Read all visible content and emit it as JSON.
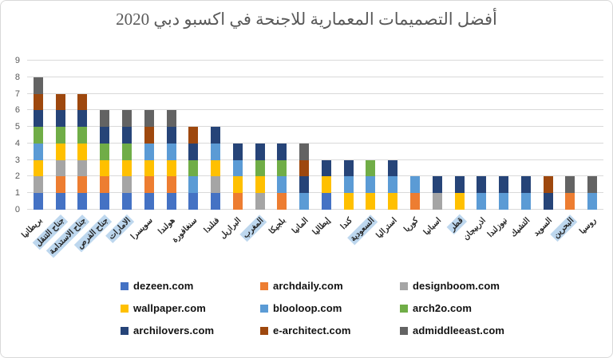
{
  "chart_data": {
    "type": "bar",
    "stacked": true,
    "title": "أفضل التصميمات المعمارية للاجنحة في اكسبو دبي 2020",
    "xlabel": "",
    "ylabel": "",
    "ylim": [
      0,
      9
    ],
    "yticks": [
      0,
      1,
      2,
      3,
      4,
      5,
      6,
      7,
      8,
      9
    ],
    "grid": true,
    "legend_position": "bottom",
    "highlight_color": "#BDD7EE",
    "gridline_color": "#D9D9D9",
    "categories": [
      "بريطانيا",
      "جناح التنقل",
      "جناح الاستدامة",
      "جناح الفرص",
      "الامارات",
      "سويسرا",
      "هولندا",
      "سنغافورة",
      "فنلندا",
      "البرازيل",
      "المغرب",
      "بلجيكا",
      "المانيا",
      "إيطاليا",
      "كندا",
      "السعودية",
      "استراليا",
      "كوريا",
      "اسبانيا",
      "قطر",
      "اذربيجان",
      "نيوزلندا",
      "التشيك",
      "السويد",
      "البحرين",
      "روسيا"
    ],
    "highlighted_categories": [
      "جناح التنقل",
      "جناح الاستدامة",
      "جناح الفرص",
      "الامارات",
      "المغرب",
      "السعودية",
      "قطر",
      "البحرين"
    ],
    "totals": [
      8,
      7,
      7,
      6,
      6,
      6,
      6,
      5,
      5,
      4,
      4,
      4,
      4,
      3,
      3,
      3,
      3,
      2,
      2,
      2,
      2,
      2,
      2,
      2,
      2,
      2
    ],
    "series": [
      {
        "name": "dezeen.com",
        "color": "#4472C4",
        "values": [
          1,
          1,
          1,
          1,
          1,
          1,
          1,
          1,
          1,
          0,
          0,
          0,
          0,
          1,
          0,
          0,
          0,
          0,
          0,
          0,
          0,
          0,
          0,
          0,
          0,
          0
        ]
      },
      {
        "name": "archdaily.com",
        "color": "#ED7D31",
        "values": [
          0,
          1,
          1,
          1,
          0,
          1,
          1,
          0,
          0,
          1,
          0,
          1,
          0,
          0,
          0,
          0,
          0,
          1,
          0,
          0,
          0,
          0,
          0,
          0,
          1,
          0
        ]
      },
      {
        "name": "designboom.com",
        "color": "#A5A5A5",
        "values": [
          1,
          1,
          1,
          0,
          1,
          0,
          0,
          0,
          1,
          0,
          1,
          0,
          0,
          0,
          0,
          0,
          0,
          0,
          1,
          0,
          0,
          0,
          0,
          0,
          0,
          0
        ]
      },
      {
        "name": "wallpaper.com",
        "color": "#FFC000",
        "values": [
          1,
          1,
          1,
          1,
          1,
          1,
          1,
          0,
          1,
          1,
          1,
          0,
          0,
          1,
          1,
          1,
          1,
          0,
          0,
          1,
          0,
          0,
          0,
          0,
          0,
          0
        ]
      },
      {
        "name": "blooloop.com",
        "color": "#5B9BD5",
        "values": [
          1,
          0,
          0,
          0,
          0,
          1,
          1,
          1,
          1,
          1,
          0,
          1,
          1,
          0,
          1,
          1,
          1,
          1,
          0,
          0,
          1,
          1,
          1,
          0,
          0,
          1
        ]
      },
      {
        "name": "arch2o.com",
        "color": "#70AD47",
        "values": [
          1,
          1,
          1,
          1,
          1,
          0,
          0,
          1,
          0,
          0,
          1,
          1,
          0,
          0,
          0,
          1,
          0,
          0,
          0,
          0,
          0,
          0,
          0,
          0,
          0,
          0
        ]
      },
      {
        "name": "archilovers.com",
        "color": "#264478",
        "values": [
          1,
          1,
          1,
          1,
          1,
          0,
          1,
          1,
          1,
          1,
          1,
          1,
          1,
          1,
          1,
          0,
          1,
          0,
          1,
          1,
          1,
          1,
          1,
          1,
          0,
          0
        ]
      },
      {
        "name": "e-architect.com",
        "color": "#9E480E",
        "values": [
          1,
          1,
          1,
          0,
          0,
          1,
          0,
          1,
          0,
          0,
          0,
          0,
          1,
          0,
          0,
          0,
          0,
          0,
          0,
          0,
          0,
          0,
          0,
          1,
          0,
          0
        ]
      },
      {
        "name": "admiddleeast.com",
        "color": "#636363",
        "values": [
          1,
          0,
          0,
          1,
          1,
          1,
          1,
          0,
          0,
          0,
          0,
          0,
          1,
          0,
          0,
          0,
          0,
          0,
          0,
          0,
          0,
          0,
          0,
          0,
          1,
          1
        ]
      }
    ]
  }
}
